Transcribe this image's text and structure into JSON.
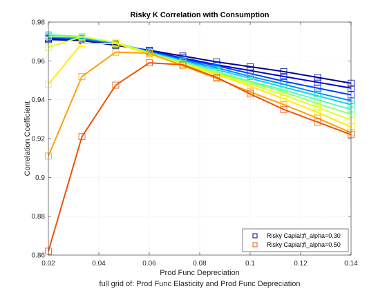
{
  "chart_data": {
    "type": "line",
    "title": "Risky K Correlation with Consumption",
    "xlabel": "Prod Func Depreciation",
    "xlabel2": "full grid of: Prod Func Elasticity and Prod Func Depreciation",
    "ylabel": "Correlation Coefficient",
    "xlim": [
      0.02,
      0.14
    ],
    "ylim": [
      0.86,
      0.98
    ],
    "xticks": [
      0.02,
      0.04,
      0.06,
      0.08,
      0.1,
      0.12,
      0.14
    ],
    "xtick_labels": [
      "0.02",
      "0.04",
      "0.06",
      "0.08",
      "0.1",
      "0.12",
      "0.14"
    ],
    "yticks": [
      0.86,
      0.88,
      0.9,
      0.92,
      0.94,
      0.96,
      0.98
    ],
    "ytick_labels": [
      "0.86",
      "0.88",
      "0.9",
      "0.92",
      "0.94",
      "0.96",
      "0.98"
    ],
    "grid": true,
    "legend_position": "bottom-right",
    "x": [
      0.02,
      0.0333,
      0.0467,
      0.06,
      0.0733,
      0.0867,
      0.1,
      0.1133,
      0.1267,
      0.14
    ],
    "series": [
      {
        "name": "Risky Capial;fl_alpha=0.30",
        "color": "#00008f",
        "marker": "square",
        "values": [
          0.971,
          0.9705,
          0.968,
          0.9655,
          0.9625,
          0.9595,
          0.957,
          0.9545,
          0.9515,
          0.9485
        ],
        "legend": true
      },
      {
        "color": "#0000d0",
        "marker": "square",
        "values": [
          0.9715,
          0.971,
          0.9685,
          0.965,
          0.9615,
          0.958,
          0.955,
          0.952,
          0.949,
          0.946
        ]
      },
      {
        "color": "#0040ff",
        "marker": "square",
        "values": [
          0.972,
          0.971,
          0.969,
          0.965,
          0.961,
          0.9575,
          0.9535,
          0.9495,
          0.946,
          0.9425
        ]
      },
      {
        "color": "#0090ff",
        "marker": "square",
        "values": [
          0.9725,
          0.9715,
          0.969,
          0.9645,
          0.9605,
          0.9565,
          0.952,
          0.948,
          0.9435,
          0.9395
        ]
      },
      {
        "color": "#10d0ff",
        "marker": "square",
        "values": [
          0.973,
          0.972,
          0.9695,
          0.9645,
          0.96,
          0.9555,
          0.951,
          0.9465,
          0.942,
          0.9375
        ]
      },
      {
        "color": "#50ffb0",
        "marker": "square",
        "values": [
          0.9735,
          0.9725,
          0.9695,
          0.964,
          0.9595,
          0.9545,
          0.9495,
          0.945,
          0.94,
          0.935
        ]
      },
      {
        "color": "#90ff70",
        "marker": "square",
        "values": [
          0.9725,
          0.9725,
          0.9695,
          0.964,
          0.9595,
          0.954,
          0.949,
          0.944,
          0.938,
          0.9325
        ]
      },
      {
        "color": "#e0ff20",
        "marker": "square",
        "values": [
          0.967,
          0.9725,
          0.9695,
          0.964,
          0.9585,
          0.9535,
          0.948,
          0.9425,
          0.936,
          0.9295
        ]
      },
      {
        "color": "#ffee00",
        "marker": "square",
        "values": [
          0.948,
          0.969,
          0.969,
          0.9635,
          0.958,
          0.953,
          0.947,
          0.9405,
          0.9335,
          0.926
        ]
      },
      {
        "color": "#ffa000",
        "marker": "square",
        "values": [
          0.911,
          0.952,
          0.9645,
          0.964,
          0.9575,
          0.951,
          0.944,
          0.9375,
          0.9305,
          0.923
        ]
      },
      {
        "name": "Risky Capial;fl_alpha=0.50",
        "color": "#f05000",
        "marker": "square",
        "values": [
          0.862,
          0.921,
          0.9475,
          0.959,
          0.958,
          0.9515,
          0.943,
          0.935,
          0.9285,
          0.922
        ],
        "legend": true
      }
    ]
  }
}
